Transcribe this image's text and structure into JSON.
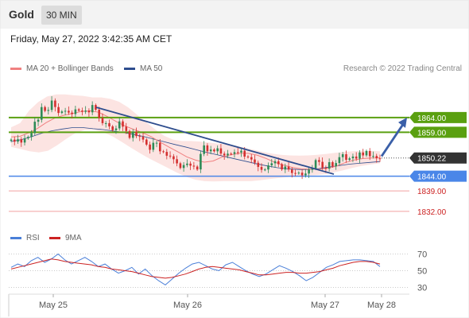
{
  "header": {
    "instrument": "Gold",
    "timeframe": "30 MIN",
    "datetime": "Friday, May 27, 2022 3:42:35 AM CET",
    "credit": "Research © 2022 Trading Central"
  },
  "legend": {
    "ma20_label": "MA 20 + Bollinger Bands",
    "ma50_label": "MA 50",
    "rsi_label": "RSI",
    "rsi_ma_label": "9MA"
  },
  "colors": {
    "ma20": "#f08080",
    "ma50": "#2e4d8e",
    "resistance": "#5aa010",
    "support": "#4a86e8",
    "projection": "#3a5fa8",
    "current": "#333333",
    "candle_up": "#2e8b57",
    "candle_down": "#d43030",
    "rsi": "#4a7fd8",
    "rsi_ma": "#cc2222"
  },
  "chart_data": [
    {
      "type": "candlestick",
      "title": "",
      "x_ticks": [
        "May 25",
        "May 26",
        "May 27",
        "May 28"
      ],
      "ylim": [
        1826,
        1877
      ],
      "price_levels": [
        {
          "label": "1864.00",
          "value": 1864.0,
          "kind": "resistance"
        },
        {
          "label": "1859.00",
          "value": 1859.0,
          "kind": "resistance"
        },
        {
          "label": "1850.22",
          "value": 1850.22,
          "kind": "current"
        },
        {
          "label": "1844.00",
          "value": 1844.0,
          "kind": "support"
        },
        {
          "label": "1839.00",
          "value": 1839.0,
          "kind": "minor"
        },
        {
          "label": "1832.00",
          "value": 1832.0,
          "kind": "minor"
        }
      ],
      "closes": [
        1856.5,
        1855.8,
        1856.6,
        1855.5,
        1856.9,
        1857.4,
        1858.7,
        1862.6,
        1863.3,
        1867.6,
        1866.3,
        1866.6,
        1869.8,
        1867.6,
        1865.6,
        1866.1,
        1866.3,
        1865.7,
        1865.2,
        1866.8,
        1866.4,
        1866.0,
        1866.4,
        1865.8,
        1868.3,
        1866.7,
        1863.9,
        1862.1,
        1862.1,
        1861.0,
        1859.7,
        1860.3,
        1862.7,
        1860.9,
        1859.4,
        1857.1,
        1859.1,
        1857.7,
        1857.5,
        1856.5,
        1854.8,
        1853.0,
        1855.4,
        1855.4,
        1852.5,
        1852.3,
        1851.0,
        1850.8,
        1849.8,
        1848.4,
        1846.8,
        1847.8,
        1848.3,
        1847.6,
        1847.3,
        1846.3,
        1851.6,
        1854.5,
        1852.5,
        1853.1,
        1852.5,
        1853.5,
        1851.7,
        1851.1,
        1851.7,
        1851.6,
        1852.2,
        1852.1,
        1852.7,
        1850.7,
        1850.5,
        1849.7,
        1848.6,
        1847.2,
        1846.2,
        1846.3,
        1847.7,
        1848.4,
        1849.1,
        1848.1,
        1846.3,
        1847.3,
        1846.3,
        1845.1,
        1845.0,
        1845.2,
        1844.3,
        1844.9,
        1846.2,
        1846.6,
        1849.5,
        1848.9,
        1846.9,
        1846.6,
        1848.8,
        1847.4,
        1848.5,
        1850.5,
        1851.5,
        1849.6,
        1850.1,
        1850.7,
        1850.0,
        1852.1,
        1851.1,
        1852.6,
        1850.8,
        1850.9,
        1850.1,
        1849.9
      ],
      "ma50": [
        1855.8,
        1856.5,
        1857.5,
        1858.7,
        1859.5,
        1860.1,
        1860.6,
        1860.6,
        1860.2,
        1859.9,
        1859.4,
        1858.9,
        1858.2,
        1857.5,
        1856.6,
        1855.7,
        1854.8,
        1854.0,
        1853.1,
        1852.2,
        1851.4,
        1850.6,
        1849.8,
        1849.0,
        1848.2,
        1847.5,
        1846.9,
        1846.5,
        1846.3,
        1846.3,
        1846.6,
        1847.1,
        1847.6,
        1848.1,
        1848.4,
        1848.7,
        1849.0
      ],
      "ma20": [
        1857.4,
        1857.6,
        1858.8,
        1860.3,
        1862.3,
        1863.9,
        1864.8,
        1865.4,
        1866.1,
        1866.3,
        1865.8,
        1864.3,
        1862.6,
        1861.1,
        1859.9,
        1858.8,
        1857.4,
        1855.6,
        1853.9,
        1852.3,
        1850.6,
        1849.5,
        1848.8,
        1849.2,
        1850.5,
        1851.3,
        1851.8,
        1851.8,
        1851.2,
        1850.1,
        1848.8,
        1847.8,
        1847.0,
        1846.5,
        1846.4,
        1846.4,
        1846.7,
        1847.4,
        1848.6,
        1849.5,
        1850.0,
        1850.2,
        1850.3
      ],
      "bollinger_upper": [
        1860.7,
        1862.1,
        1866.4,
        1869.3,
        1871.2,
        1871.9,
        1871.9,
        1871.6,
        1871.4,
        1870.9,
        1870.9,
        1870.4,
        1869.4,
        1867.5,
        1865.0,
        1862.5,
        1860.0,
        1857.8,
        1856.5,
        1856.0,
        1856.0,
        1855.8,
        1855.5,
        1855.1,
        1854.9,
        1854.4,
        1853.7,
        1853.0,
        1852.3,
        1851.7,
        1851.3,
        1851.1,
        1851.0,
        1851.1,
        1851.3,
        1851.6,
        1852.0,
        1852.3,
        1852.5,
        1852.6,
        1852.6,
        1852.5
      ],
      "bollinger_lower": [
        1854.0,
        1853.3,
        1852.5,
        1852.1,
        1852.7,
        1854.6,
        1856.8,
        1858.8,
        1859.8,
        1859.8,
        1859.0,
        1857.6,
        1855.7,
        1853.7,
        1851.8,
        1850.0,
        1848.4,
        1846.8,
        1845.2,
        1843.8,
        1842.8,
        1842.3,
        1842.2,
        1842.3,
        1842.3,
        1842.3,
        1842.3,
        1842.6,
        1843.0,
        1843.4,
        1843.7,
        1844.0,
        1844.2,
        1844.4,
        1844.7,
        1845.3,
        1846.0,
        1846.8,
        1847.5,
        1848.0,
        1848.4
      ],
      "trendline": {
        "from": 1867.5,
        "to": 1844.7
      },
      "projection": {
        "from": 1850.8,
        "to": 1864.0
      }
    },
    {
      "type": "line",
      "title": "",
      "yticks": [
        70,
        50,
        30
      ],
      "ylim": [
        20,
        80
      ],
      "series": [
        {
          "name": "RSI",
          "values": [
            54,
            58,
            55,
            62,
            66,
            60,
            64,
            70,
            63,
            58,
            62,
            66,
            61,
            55,
            58,
            52,
            47,
            50,
            54,
            46,
            52,
            44,
            38,
            33,
            40,
            47,
            53,
            58,
            60,
            56,
            52,
            50,
            57,
            60,
            55,
            50,
            46,
            43,
            46,
            51,
            56,
            53,
            49,
            44,
            38,
            42,
            48,
            54,
            57,
            61,
            62,
            63,
            63,
            62,
            61,
            55
          ]
        },
        {
          "name": "9MA",
          "values": [
            52,
            54,
            56,
            58,
            60,
            62,
            64,
            63,
            61,
            60,
            59,
            58,
            57,
            55,
            54,
            52,
            51,
            50,
            49,
            47,
            45,
            43,
            42,
            41,
            42,
            44,
            46,
            49,
            52,
            54,
            55,
            54,
            53,
            52,
            51,
            49,
            47,
            45,
            45,
            46,
            47,
            48,
            48,
            47,
            47,
            48,
            49,
            51,
            53,
            56,
            58,
            60,
            61,
            61,
            60,
            58
          ]
        }
      ]
    }
  ]
}
